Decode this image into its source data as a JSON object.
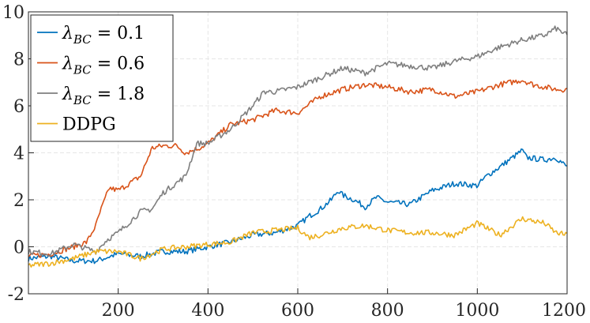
{
  "chart_data": {
    "type": "line",
    "title": "",
    "xlabel": "",
    "ylabel": "",
    "xlim": [
      0,
      1200
    ],
    "ylim": [
      -2,
      10
    ],
    "xticks": [
      "200",
      "400",
      "600",
      "800",
      "1000",
      "1200"
    ],
    "xtick_values": [
      200,
      400,
      600,
      800,
      1000,
      1200
    ],
    "yticks": [
      "-2",
      "0",
      "2",
      "4",
      "6",
      "8",
      "10"
    ],
    "ytick_values": [
      -2,
      0,
      2,
      4,
      6,
      8,
      10
    ],
    "grid": true,
    "legend_position": "top-left",
    "series": [
      {
        "name": "λ_BC = 0.1",
        "legend": {
          "symbol": "λ",
          "subscript": "BC",
          "rest": " = 0.1"
        },
        "color": "#0072BD",
        "x": [
          0,
          50,
          100,
          150,
          200,
          250,
          300,
          350,
          400,
          450,
          500,
          550,
          600,
          625,
          650,
          675,
          690,
          700,
          725,
          750,
          775,
          800,
          850,
          900,
          950,
          1000,
          1020,
          1050,
          1100,
          1110,
          1150,
          1175,
          1200
        ],
        "y": [
          -0.5,
          -0.4,
          -0.6,
          -0.6,
          -0.3,
          -0.4,
          -0.2,
          -0.2,
          0.0,
          0.2,
          0.5,
          0.6,
          0.9,
          1.3,
          1.6,
          2.0,
          2.4,
          2.2,
          2.0,
          1.7,
          2.1,
          1.9,
          1.8,
          2.4,
          2.7,
          2.6,
          3.0,
          3.4,
          4.1,
          3.8,
          3.7,
          3.8,
          3.4
        ]
      },
      {
        "name": "λ_BC = 0.6",
        "legend": {
          "symbol": "λ",
          "subscript": "BC",
          "rest": " = 0.6"
        },
        "color": "#D95319",
        "x": [
          0,
          50,
          100,
          130,
          150,
          160,
          180,
          200,
          250,
          275,
          300,
          330,
          350,
          380,
          400,
          450,
          500,
          550,
          600,
          650,
          700,
          750,
          800,
          850,
          900,
          950,
          1000,
          1050,
          1100,
          1125,
          1150,
          1175,
          1200
        ],
        "y": [
          -0.4,
          -0.3,
          0.0,
          0.2,
          0.9,
          1.5,
          2.5,
          2.4,
          3.0,
          4.2,
          4.3,
          4.3,
          4.0,
          4.2,
          4.4,
          5.2,
          5.4,
          5.8,
          5.7,
          6.4,
          6.7,
          6.9,
          6.8,
          6.6,
          6.7,
          6.4,
          6.6,
          6.9,
          7.1,
          6.9,
          6.8,
          6.7,
          6.7
        ]
      },
      {
        "name": "λ_BC = 1.8",
        "legend": {
          "symbol": "λ",
          "subscript": "BC",
          "rest": " = 1.8"
        },
        "color": "#7F7F7F",
        "x": [
          0,
          50,
          100,
          150,
          175,
          200,
          250,
          275,
          300,
          350,
          375,
          400,
          450,
          500,
          525,
          550,
          600,
          650,
          700,
          750,
          800,
          850,
          900,
          950,
          1000,
          1050,
          1100,
          1150,
          1175,
          1200
        ],
        "y": [
          -0.2,
          -0.3,
          0.1,
          -0.2,
          0.3,
          0.6,
          1.5,
          1.6,
          2.3,
          3.0,
          4.4,
          4.4,
          5.0,
          6.0,
          6.6,
          6.6,
          6.8,
          7.2,
          7.6,
          7.4,
          7.8,
          7.7,
          7.6,
          7.9,
          8.1,
          8.5,
          8.8,
          9.0,
          9.3,
          9.0
        ]
      },
      {
        "name": "DDPG",
        "legend": {
          "symbol": "",
          "subscript": "",
          "rest": "DDPG"
        },
        "color": "#EDB120",
        "x": [
          0,
          50,
          100,
          150,
          200,
          250,
          300,
          350,
          400,
          450,
          500,
          550,
          600,
          625,
          650,
          700,
          750,
          800,
          850,
          900,
          950,
          1000,
          1050,
          1100,
          1150,
          1175,
          1200
        ],
        "y": [
          -0.8,
          -0.7,
          -0.5,
          -0.2,
          -0.2,
          -0.5,
          -0.1,
          0.0,
          0.1,
          0.2,
          0.6,
          0.7,
          0.8,
          0.4,
          0.5,
          0.8,
          0.9,
          0.7,
          0.6,
          0.6,
          0.5,
          1.0,
          0.5,
          1.2,
          1.0,
          0.6,
          0.5
        ]
      }
    ]
  }
}
